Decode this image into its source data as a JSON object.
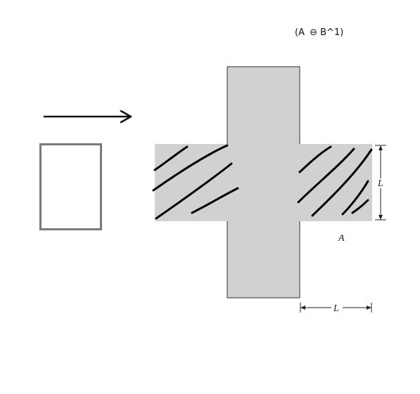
{
  "formula": {
    "open": "(A",
    "operator_symbol": "⊖",
    "rest": "B^1)"
  },
  "labels": {
    "set_name": "A",
    "vertical_dimension": "L",
    "horizontal_dimension": "L"
  },
  "colors": {
    "cross_fill": "#d0d1d3",
    "cross_stroke": "#2a2a2a",
    "structuring_element_stroke": "#7a7a7a",
    "hatch": "#000000",
    "arrow": "#111111",
    "dimension": "#222222"
  }
}
